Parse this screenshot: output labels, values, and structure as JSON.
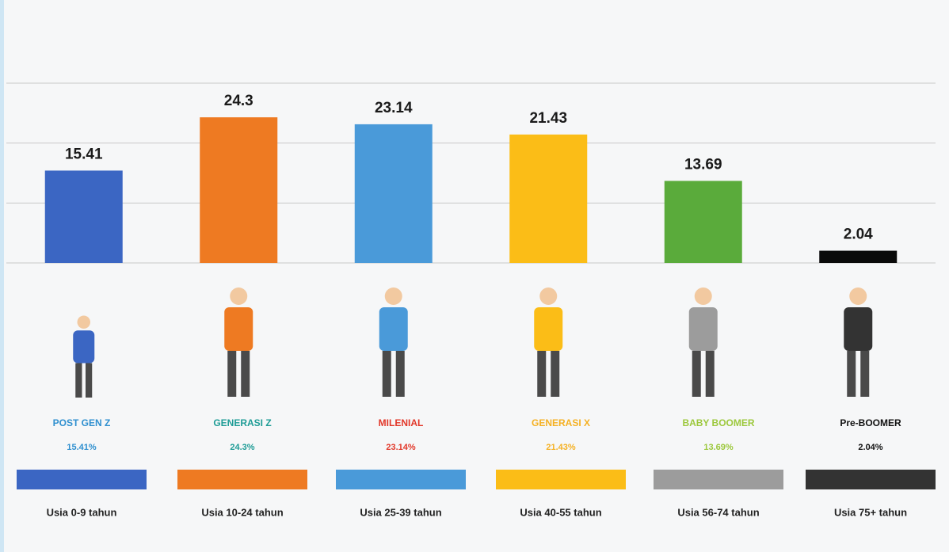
{
  "chart_data": {
    "type": "bar",
    "values": [
      15.41,
      24.3,
      23.14,
      21.43,
      13.69,
      2.04
    ],
    "colors": [
      "#3b66c3",
      "#ee7a22",
      "#4a9ad9",
      "#fbbd17",
      "#5aab3b",
      "#0a0a0a"
    ],
    "ylim": [
      0,
      30
    ],
    "yticks": [
      0,
      10,
      20,
      30
    ],
    "grid": true,
    "generations": [
      {
        "name": "POST GEN Z",
        "share": "15.41%",
        "text_color": "#2e8fcf",
        "bar_color": "#3b66c3",
        "age": "Usia 0-9 tahun"
      },
      {
        "name": "GENERASI Z",
        "share": "24.3%",
        "text_color": "#1e9c96",
        "bar_color": "#ee7a22",
        "age": "Usia 10-24 tahun"
      },
      {
        "name": "MILENIAL",
        "share": "23.14%",
        "text_color": "#e2382a",
        "bar_color": "#4a9ad9",
        "age": "Usia 25-39 tahun"
      },
      {
        "name": "GENERASI X",
        "share": "21.43%",
        "text_color": "#f5b123",
        "bar_color": "#fbbd17",
        "age": "Usia 40-55 tahun"
      },
      {
        "name": "BABY BOOMER",
        "share": "13.69%",
        "text_color": "#9cc83c",
        "bar_color": "#9c9c9c",
        "age": "Usia 56-74 tahun"
      },
      {
        "name": "Pre-BOOMER",
        "share": "2.04%",
        "text_color": "#111111",
        "bar_color": "#333333",
        "age": "Usia 75+ tahun"
      }
    ]
  }
}
